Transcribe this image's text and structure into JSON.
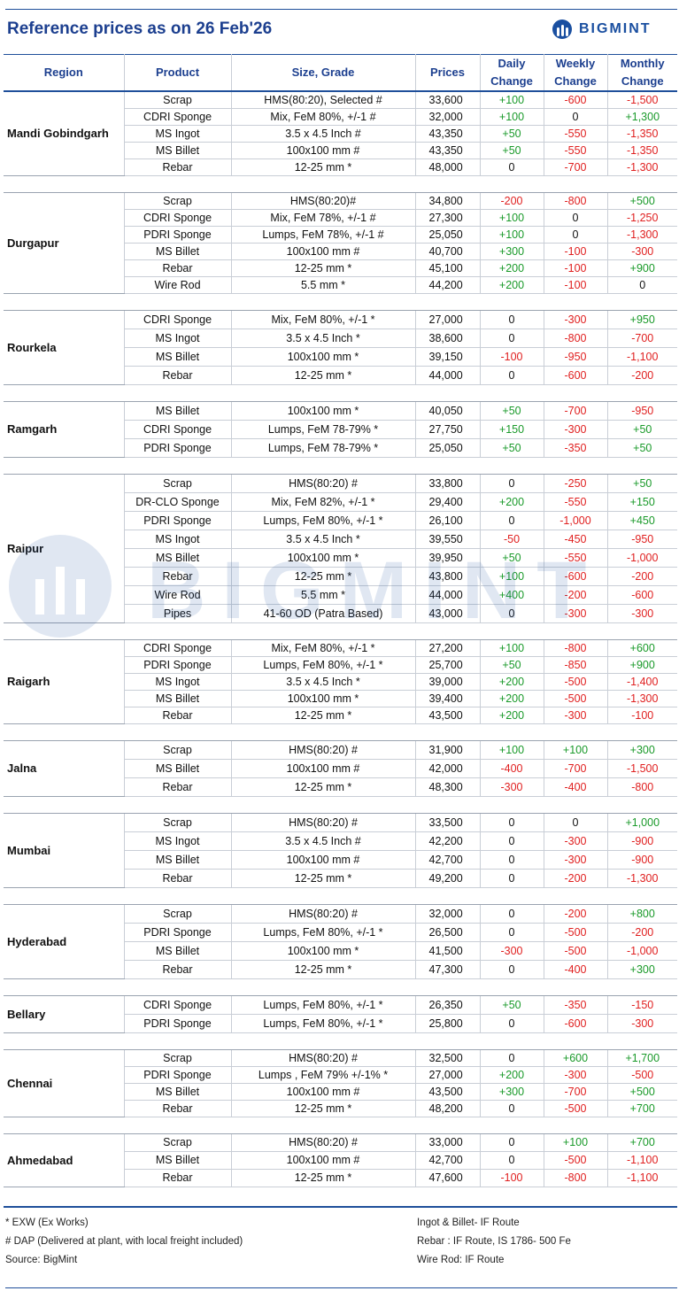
{
  "title": "Reference prices as on 26 Feb'26",
  "brand": "BIGMINT",
  "watermark": "BIGMINT",
  "columns": {
    "region": "Region",
    "product": "Product",
    "size": "Size, Grade",
    "prices": "Prices",
    "daily": [
      "Daily",
      "Change"
    ],
    "weekly": [
      "Weekly",
      "Change"
    ],
    "monthly": [
      "Monthly",
      "Change"
    ]
  },
  "groups": [
    {
      "region": "Mandi Gobindgarh",
      "rows": [
        [
          "Scrap",
          "HMS(80:20), Selected #",
          "33,600",
          "+100",
          "-600",
          "-1,500"
        ],
        [
          "CDRI Sponge",
          "Mix, FeM 80%, +/-1 #",
          "32,000",
          "+100",
          "0",
          "+1,300"
        ],
        [
          "MS Ingot",
          "3.5 x 4.5 Inch #",
          "43,350",
          "+50",
          "-550",
          "-1,350"
        ],
        [
          "MS Billet",
          "100x100 mm #",
          "43,350",
          "+50",
          "-550",
          "-1,350"
        ],
        [
          "Rebar",
          "12-25 mm *",
          "48,000",
          "0",
          "-700",
          "-1,300"
        ]
      ]
    },
    {
      "region": "Durgapur",
      "rows": [
        [
          "Scrap",
          "HMS(80:20)#",
          "34,800",
          "-200",
          "-800",
          "+500"
        ],
        [
          "CDRI Sponge",
          "Mix, FeM 78%, +/-1 #",
          "27,300",
          "+100",
          "0",
          "-1,250"
        ],
        [
          "PDRI Sponge",
          "Lumps, FeM 78%, +/-1 #",
          "25,050",
          "+100",
          "0",
          "-1,300"
        ],
        [
          "MS Billet",
          "100x100 mm #",
          "40,700",
          "+300",
          "-100",
          "-300"
        ],
        [
          "Rebar",
          "12-25 mm *",
          "45,100",
          "+200",
          "-100",
          "+900"
        ],
        [
          "Wire Rod",
          "5.5 mm *",
          "44,200",
          "+200",
          "-100",
          "0"
        ]
      ]
    },
    {
      "region": "Rourkela",
      "rows": [
        [
          "CDRI Sponge",
          "Mix, FeM 80%, +/-1 *",
          "27,000",
          "0",
          "-300",
          "+950"
        ],
        [
          "MS Ingot",
          "3.5 x 4.5 Inch *",
          "38,600",
          "0",
          "-800",
          "-700"
        ],
        [
          "MS Billet",
          "100x100 mm *",
          "39,150",
          "-100",
          "-950",
          "-1,100"
        ],
        [
          "Rebar",
          "12-25 mm *",
          "44,000",
          "0",
          "-600",
          "-200"
        ]
      ]
    },
    {
      "region": "Ramgarh",
      "rows": [
        [
          "MS Billet",
          "100x100 mm *",
          "40,050",
          "+50",
          "-700",
          "-950"
        ],
        [
          "CDRI Sponge",
          "Lumps, FeM 78-79% *",
          "27,750",
          "+150",
          "-300",
          "+50"
        ],
        [
          "PDRI Sponge",
          "Lumps, FeM 78-79% *",
          "25,050",
          "+50",
          "-350",
          "+50"
        ]
      ]
    },
    {
      "region": "Raipur",
      "rows": [
        [
          "Scrap",
          "HMS(80:20) #",
          "33,800",
          "0",
          "-250",
          "+50"
        ],
        [
          "DR-CLO Sponge",
          "Mix, FeM 82%, +/-1 *",
          "29,400",
          "+200",
          "-550",
          "+150"
        ],
        [
          "PDRI Sponge",
          "Lumps, FeM 80%, +/-1 *",
          "26,100",
          "0",
          "-1,000",
          "+450"
        ],
        [
          "MS Ingot",
          "3.5 x 4.5 Inch *",
          "39,550",
          "-50",
          "-450",
          "-950"
        ],
        [
          "MS Billet",
          "100x100 mm *",
          "39,950",
          "+50",
          "-550",
          "-1,000"
        ],
        [
          "Rebar",
          "12-25 mm *",
          "43,800",
          "+100",
          "-600",
          "-200"
        ],
        [
          "Wire Rod",
          "5.5 mm *",
          "44,000",
          "+400",
          "-200",
          "-600"
        ],
        [
          "Pipes",
          "41-60 OD (Patra Based)",
          "43,000",
          "0",
          "-300",
          "-300"
        ]
      ]
    },
    {
      "region": "Raigarh",
      "rows": [
        [
          "CDRI Sponge",
          "Mix, FeM 80%, +/-1 *",
          "27,200",
          "+100",
          "-800",
          "+600"
        ],
        [
          "PDRI Sponge",
          "Lumps, FeM 80%, +/-1 *",
          "25,700",
          "+50",
          "-850",
          "+900"
        ],
        [
          "MS Ingot",
          "3.5 x 4.5 Inch *",
          "39,000",
          "+200",
          "-500",
          "-1,400"
        ],
        [
          "MS Billet",
          "100x100 mm *",
          "39,400",
          "+200",
          "-500",
          "-1,300"
        ],
        [
          "Rebar",
          "12-25 mm *",
          "43,500",
          "+200",
          "-300",
          "-100"
        ]
      ]
    },
    {
      "region": "Jalna",
      "rows": [
        [
          "Scrap",
          "HMS(80:20) #",
          "31,900",
          "+100",
          "+100",
          "+300"
        ],
        [
          "MS Billet",
          "100x100 mm #",
          "42,000",
          "-400",
          "-700",
          "-1,500"
        ],
        [
          "Rebar",
          "12-25 mm *",
          "48,300",
          "-300",
          "-400",
          "-800"
        ]
      ]
    },
    {
      "region": "Mumbai",
      "rows": [
        [
          "Scrap",
          "HMS(80:20) #",
          "33,500",
          "0",
          "0",
          "+1,000"
        ],
        [
          "MS Ingot",
          "3.5 x 4.5 Inch #",
          "42,200",
          "0",
          "-300",
          "-900"
        ],
        [
          "MS Billet",
          "100x100 mm #",
          "42,700",
          "0",
          "-300",
          "-900"
        ],
        [
          "Rebar",
          "12-25 mm *",
          "49,200",
          "0",
          "-200",
          "-1,300"
        ]
      ]
    },
    {
      "region": "Hyderabad",
      "rows": [
        [
          "Scrap",
          "HMS(80:20) #",
          "32,000",
          "0",
          "-200",
          "+800"
        ],
        [
          "PDRI Sponge",
          "Lumps, FeM 80%, +/-1 *",
          "26,500",
          "0",
          "-500",
          "-200"
        ],
        [
          "MS Billet",
          "100x100 mm *",
          "41,500",
          "-300",
          "-500",
          "-1,000"
        ],
        [
          "Rebar",
          "12-25 mm *",
          "47,300",
          "0",
          "-400",
          "+300"
        ]
      ]
    },
    {
      "region": "Bellary",
      "rows": [
        [
          "CDRI Sponge",
          "Lumps, FeM 80%, +/-1 *",
          "26,350",
          "+50",
          "-350",
          "-150"
        ],
        [
          "PDRI Sponge",
          "Lumps, FeM 80%, +/-1 *",
          "25,800",
          "0",
          "-600",
          "-300"
        ]
      ]
    },
    {
      "region": "Chennai",
      "rows": [
        [
          "Scrap",
          "HMS(80:20) #",
          "32,500",
          "0",
          "+600",
          "+1,700"
        ],
        [
          "PDRI Sponge",
          "Lumps , FeM 79% +/-1% *",
          "27,000",
          "+200",
          "-300",
          "-500"
        ],
        [
          "MS Billet",
          "100x100 mm  #",
          "43,500",
          "+300",
          "-700",
          "+500"
        ],
        [
          "Rebar",
          "12-25 mm *",
          "48,200",
          "0",
          "-500",
          "+700"
        ]
      ]
    },
    {
      "region": "Ahmedabad",
      "rows": [
        [
          "Scrap",
          "HMS(80:20) #",
          "33,000",
          "0",
          "+100",
          "+700"
        ],
        [
          "MS Billet",
          "100x100 mm  #",
          "42,700",
          "0",
          "-500",
          "-1,100"
        ],
        [
          "Rebar",
          "12-25 mm *",
          "47,600",
          "-100",
          "-800",
          "-1,100"
        ]
      ]
    }
  ],
  "row_heights": [
    19,
    19,
    21,
    21,
    21,
    19,
    21,
    21,
    21,
    21,
    19,
    20,
    20
  ],
  "footnotes": {
    "left": [
      "* EXW (Ex Works)",
      "# DAP (Delivered at plant, with local freight included)",
      "Source: BigMint"
    ],
    "right": [
      "Ingot & Billet- IF Route",
      "Rebar : IF Route, IS 1786- 500 Fe",
      "Wire Rod: IF Route"
    ]
  },
  "colors": {
    "header_blue": "#1c3f8f",
    "positive": "#1a9a2a",
    "negative": "#e02020",
    "brand": "#1a4fa0"
  }
}
